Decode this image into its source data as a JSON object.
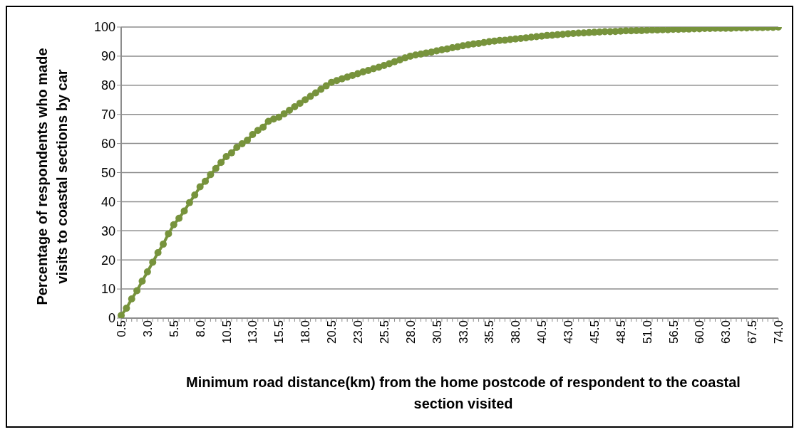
{
  "chart_data": {
    "type": "line",
    "xlabel": "Minimum road distance(km) from the home postcode of respondent to the coastal section visited",
    "ylabel": "Percentage of respondents who made visits to coastal sections by car",
    "categories": [
      "0.5",
      null,
      null,
      null,
      null,
      "3.0",
      null,
      null,
      null,
      null,
      "5.5",
      null,
      null,
      null,
      null,
      "8.0",
      null,
      null,
      null,
      null,
      "10.5",
      null,
      null,
      null,
      null,
      "13.0",
      null,
      null,
      null,
      null,
      "15.5",
      null,
      null,
      null,
      null,
      "18.0",
      null,
      null,
      null,
      null,
      "20.5",
      null,
      null,
      null,
      null,
      "23.0",
      null,
      null,
      null,
      null,
      "25.5",
      null,
      null,
      null,
      null,
      "28.0",
      null,
      null,
      null,
      null,
      "30.5",
      null,
      null,
      null,
      null,
      "33.0",
      null,
      null,
      null,
      null,
      "35.5",
      null,
      null,
      null,
      null,
      "38.0",
      null,
      null,
      null,
      null,
      "40.5",
      null,
      null,
      null,
      null,
      "43.0",
      null,
      null,
      null,
      null,
      "45.5",
      null,
      null,
      null,
      null,
      "48.5",
      null,
      null,
      null,
      null,
      "51.0",
      null,
      null,
      null,
      null,
      "56.5",
      null,
      null,
      null,
      null,
      "60.0",
      null,
      null,
      null,
      null,
      "63.0",
      null,
      null,
      null,
      null,
      "67.5",
      null,
      null,
      null,
      null,
      "74.0"
    ],
    "series": [
      {
        "color": "#77933c",
        "values": [
          0.9,
          3.4,
          6.6,
          9.4,
          12.7,
          15.9,
          19.2,
          22.5,
          25.4,
          29.0,
          32.1,
          34.3,
          36.8,
          39.7,
          42.3,
          45.1,
          47.0,
          49.3,
          51.4,
          53.5,
          55.5,
          56.8,
          58.7,
          59.9,
          61.1,
          63.1,
          64.5,
          65.6,
          67.6,
          68.4,
          69.0,
          70.2,
          71.4,
          72.6,
          73.8,
          75.0,
          76.2,
          77.4,
          78.6,
          79.8,
          81.0,
          81.6,
          82.2,
          82.8,
          83.4,
          84.0,
          84.6,
          85.1,
          85.7,
          86.2,
          86.8,
          87.4,
          88.1,
          88.7,
          89.4,
          90.0,
          90.4,
          90.7,
          91.1,
          91.4,
          91.8,
          92.2,
          92.5,
          92.9,
          93.2,
          93.6,
          93.9,
          94.2,
          94.4,
          94.7,
          95.0,
          95.2,
          95.4,
          95.5,
          95.7,
          95.9,
          96.1,
          96.3,
          96.5,
          96.7,
          96.9,
          97.1,
          97.2,
          97.4,
          97.5,
          97.7,
          97.8,
          97.9,
          98.0,
          98.1,
          98.2,
          98.3,
          98.4,
          98.4,
          98.5,
          98.6,
          98.7,
          98.7,
          98.8,
          98.8,
          98.9,
          99.0,
          99.0,
          99.1,
          99.1,
          99.2,
          99.2,
          99.3,
          99.3,
          99.4,
          99.4,
          99.5,
          99.5,
          99.6,
          99.6,
          99.6,
          99.6,
          99.7,
          99.7,
          99.7,
          99.8,
          99.8,
          99.8,
          99.9,
          99.9,
          100.0
        ]
      }
    ],
    "ylim": [
      0,
      100
    ],
    "yticks": [
      0,
      10,
      20,
      30,
      40,
      50,
      60,
      70,
      80,
      90,
      100
    ],
    "grid": "y",
    "marker": "circle",
    "line_style": "solid",
    "legend": false
  }
}
